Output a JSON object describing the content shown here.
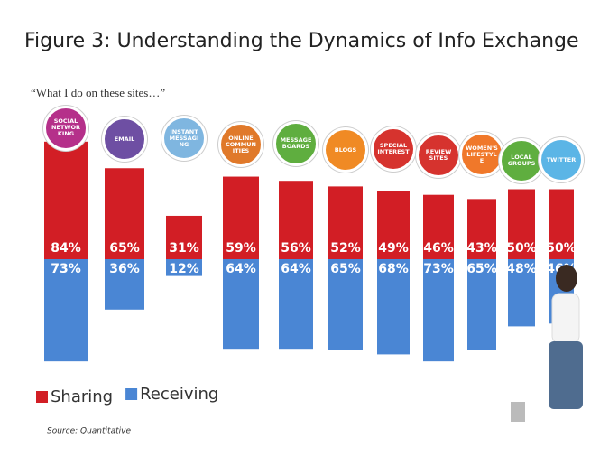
{
  "chart_data": {
    "type": "diverging-bar",
    "title": "Figure 3: Understanding the Dynamics of Info Exchange",
    "subtitle": "“What I do on these sites…”",
    "source": "Source: Quantitative",
    "categories": [
      "SOCIAL NETWORKING",
      "EMAIL",
      "INSTANT MESSAGING",
      "ONLINE COMMUNITIES",
      "MESSAGE BOARDS",
      "BLOGS",
      "SPECIAL INTEREST",
      "REVIEW SITES",
      "WOMEN'S LIFESTYLE",
      "LOCAL GROUPS",
      "TWITTER"
    ],
    "icon_colors": [
      "#b5308a",
      "#6e4fa3",
      "#7fb6e0",
      "#e0792a",
      "#5fae3f",
      "#f08a24",
      "#d6332e",
      "#d6332e",
      "#f0782a",
      "#5fae3f",
      "#5bb5e6"
    ],
    "series": [
      {
        "name": "Sharing",
        "color": "#d21e25",
        "values": [
          84,
          65,
          31,
          59,
          56,
          52,
          49,
          46,
          43,
          50,
          50
        ],
        "value_labels": [
          "84%",
          "65%",
          "31%",
          "59%",
          "56%",
          "52%",
          "49%",
          "46%",
          "43%",
          "50%",
          "50%"
        ]
      },
      {
        "name": "Receiving",
        "color": "#4a86d4",
        "values": [
          73,
          36,
          12,
          64,
          64,
          65,
          68,
          73,
          65,
          48,
          46
        ],
        "value_labels": [
          "73%",
          "36%",
          "12%",
          "64%",
          "64%",
          "65%",
          "68%",
          "73%",
          "65%",
          "48%",
          "46%"
        ]
      }
    ]
  }
}
